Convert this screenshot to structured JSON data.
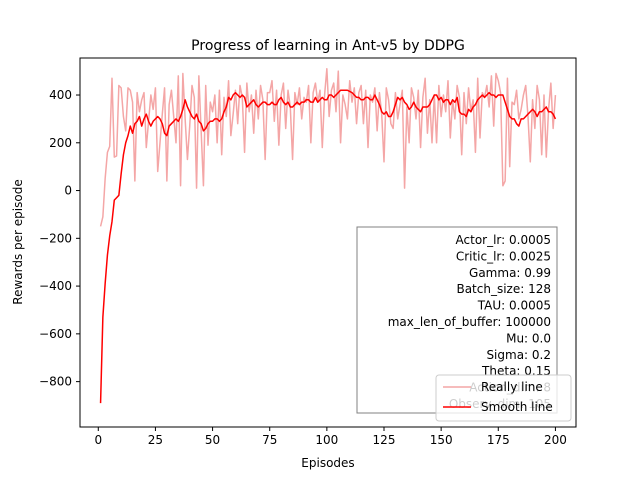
{
  "chart_data": {
    "type": "line",
    "title": "Progress of learning in Ant-v5 by DDPG",
    "xlabel": "Episodes",
    "ylabel": "Rewards per episode",
    "xlim": [
      -8,
      209
    ],
    "ylim": [
      -990,
      555
    ],
    "xticks": [
      0,
      25,
      50,
      75,
      100,
      125,
      150,
      175,
      200
    ],
    "yticks": [
      -800,
      -600,
      -400,
      -200,
      0,
      200,
      400
    ],
    "grid": false,
    "legend_position": "lower-right",
    "series": [
      {
        "name": "Really line",
        "color": "#f4a6a6",
        "x": [
          1,
          2,
          3,
          4,
          5,
          6,
          7,
          8,
          9,
          10,
          11,
          12,
          13,
          14,
          15,
          16,
          17,
          18,
          19,
          20,
          21,
          22,
          23,
          24,
          25,
          26,
          27,
          28,
          29,
          30,
          31,
          32,
          33,
          34,
          35,
          36,
          37,
          38,
          39,
          40,
          41,
          42,
          43,
          44,
          45,
          46,
          47,
          48,
          49,
          50,
          51,
          52,
          53,
          54,
          55,
          56,
          57,
          58,
          59,
          60,
          61,
          62,
          63,
          64,
          65,
          66,
          67,
          68,
          69,
          70,
          71,
          72,
          73,
          74,
          75,
          76,
          77,
          78,
          79,
          80,
          81,
          82,
          83,
          84,
          85,
          86,
          87,
          88,
          89,
          90,
          91,
          92,
          93,
          94,
          95,
          96,
          97,
          98,
          99,
          100,
          101,
          102,
          103,
          104,
          105,
          106,
          107,
          108,
          109,
          110,
          111,
          112,
          113,
          114,
          115,
          116,
          117,
          118,
          119,
          120,
          121,
          122,
          123,
          124,
          125,
          126,
          127,
          128,
          129,
          130,
          131,
          132,
          133,
          134,
          135,
          136,
          137,
          138,
          139,
          140,
          141,
          142,
          143,
          144,
          145,
          146,
          147,
          148,
          149,
          150,
          151,
          152,
          153,
          154,
          155,
          156,
          157,
          158,
          159,
          160,
          161,
          162,
          163,
          164,
          165,
          166,
          167,
          168,
          169,
          170,
          171,
          172,
          173,
          174,
          175,
          176,
          177,
          178,
          179,
          180,
          181,
          182,
          183,
          184,
          185,
          186,
          187,
          188,
          189,
          190,
          191,
          192,
          193,
          194,
          195,
          196,
          197,
          198,
          199,
          200
        ],
        "values": [
          -150,
          -110,
          50,
          160,
          185,
          470,
          140,
          145,
          440,
          430,
          310,
          250,
          430,
          420,
          370,
          40,
          410,
          330,
          380,
          410,
          180,
          290,
          400,
          340,
          430,
          80,
          200,
          320,
          430,
          40,
          360,
          420,
          310,
          200,
          480,
          20,
          490,
          300,
          130,
          270,
          440,
          390,
          10,
          480,
          250,
          20,
          440,
          190,
          370,
          330,
          400,
          200,
          420,
          150,
          390,
          310,
          460,
          230,
          320,
          420,
          280,
          440,
          390,
          160,
          450,
          330,
          400,
          240,
          420,
          300,
          440,
          380,
          130,
          410,
          410,
          460,
          290,
          420,
          190,
          400,
          450,
          260,
          420,
          350,
          130,
          410,
          360,
          430,
          300,
          390,
          370,
          440,
          200,
          410,
          450,
          370,
          420,
          180,
          400,
          510,
          310,
          420,
          450,
          330,
          500,
          200,
          400,
          360,
          300,
          460,
          370,
          430,
          280,
          410,
          440,
          280,
          420,
          180,
          400,
          370,
          430,
          250,
          410,
          320,
          120,
          430,
          380,
          280,
          260,
          410,
          300,
          360,
          420,
          10,
          350,
          200,
          430,
          390,
          300,
          420,
          180,
          390,
          470,
          240,
          380,
          200,
          400,
          200,
          440,
          310,
          400,
          330,
          460,
          220,
          380,
          300,
          440,
          390,
          150,
          410,
          280,
          430,
          330,
          380,
          160,
          470,
          220,
          410,
          390,
          440,
          350,
          480,
          270,
          490,
          460,
          410,
          20,
          40,
          470,
          100,
          370,
          360,
          420,
          300,
          340,
          400,
          440,
          310,
          120,
          380,
          260,
          440,
          380,
          150,
          400,
          140,
          340,
          450,
          260,
          400
        ]
      },
      {
        "name": "Smooth line",
        "color": "#ff0000",
        "x": [
          1,
          2,
          3,
          4,
          5,
          6,
          7,
          8,
          9,
          10,
          11,
          12,
          13,
          14,
          15,
          16,
          17,
          18,
          19,
          20,
          21,
          22,
          23,
          24,
          25,
          26,
          27,
          28,
          29,
          30,
          31,
          32,
          33,
          34,
          35,
          36,
          37,
          38,
          39,
          40,
          41,
          42,
          43,
          44,
          45,
          46,
          47,
          48,
          49,
          50,
          51,
          52,
          53,
          54,
          55,
          56,
          57,
          58,
          59,
          60,
          61,
          62,
          63,
          64,
          65,
          66,
          67,
          68,
          69,
          70,
          71,
          72,
          73,
          74,
          75,
          76,
          77,
          78,
          79,
          80,
          81,
          82,
          83,
          84,
          85,
          86,
          87,
          88,
          89,
          90,
          91,
          92,
          93,
          94,
          95,
          96,
          97,
          98,
          99,
          100,
          101,
          102,
          103,
          104,
          105,
          106,
          107,
          108,
          109,
          110,
          111,
          112,
          113,
          114,
          115,
          116,
          117,
          118,
          119,
          120,
          121,
          122,
          123,
          124,
          125,
          126,
          127,
          128,
          129,
          130,
          131,
          132,
          133,
          134,
          135,
          136,
          137,
          138,
          139,
          140,
          141,
          142,
          143,
          144,
          145,
          146,
          147,
          148,
          149,
          150,
          151,
          152,
          153,
          154,
          155,
          156,
          157,
          158,
          159,
          160,
          161,
          162,
          163,
          164,
          165,
          166,
          167,
          168,
          169,
          170,
          171,
          172,
          173,
          174,
          175,
          176,
          177,
          178,
          179,
          180,
          181,
          182,
          183,
          184,
          185,
          186,
          187,
          188,
          189,
          190,
          191,
          192,
          193,
          194,
          195,
          196,
          197,
          198,
          199,
          200
        ],
        "values": [
          -890,
          -530,
          -390,
          -270,
          -190,
          -130,
          -40,
          -30,
          -20,
          70,
          150,
          200,
          230,
          270,
          240,
          280,
          290,
          310,
          270,
          300,
          320,
          290,
          270,
          290,
          300,
          310,
          300,
          280,
          240,
          230,
          270,
          280,
          290,
          300,
          290,
          310,
          340,
          380,
          350,
          330,
          310,
          300,
          320,
          290,
          280,
          250,
          260,
          280,
          290,
          290,
          300,
          300,
          290,
          300,
          330,
          350,
          390,
          380,
          400,
          410,
          400,
          390,
          400,
          390,
          350,
          360,
          370,
          380,
          360,
          350,
          360,
          370,
          370,
          360,
          360,
          370,
          360,
          360,
          380,
          390,
          370,
          360,
          370,
          350,
          350,
          360,
          370,
          360,
          370,
          370,
          380,
          380,
          370,
          370,
          390,
          370,
          380,
          390,
          380,
          380,
          400,
          400,
          390,
          400,
          410,
          420,
          420,
          420,
          420,
          415,
          410,
          400,
          390,
          390,
          380,
          380,
          390,
          390,
          380,
          380,
          400,
          380,
          360,
          330,
          320,
          330,
          310,
          310,
          330,
          360,
          390,
          380,
          390,
          370,
          360,
          340,
          350,
          370,
          350,
          340,
          330,
          350,
          350,
          350,
          360,
          380,
          400,
          400,
          380,
          390,
          370,
          380,
          380,
          360,
          380,
          370,
          390,
          330,
          320,
          320,
          310,
          340,
          330,
          350,
          360,
          380,
          390,
          400,
          390,
          400,
          410,
          400,
          400,
          390,
          400,
          400,
          400,
          370,
          340,
          310,
          300,
          300,
          280,
          270,
          300,
          300,
          310,
          320,
          330,
          340,
          330,
          310,
          330,
          330,
          340,
          350,
          330,
          330,
          320,
          300
        ]
      }
    ],
    "annotation_lines": [
      "Actor_lr: 0.0005",
      "Critic_lr: 0.0025",
      "Gamma: 0.99",
      "Batch_size: 128",
      "TAU: 0.0005",
      "max_len_of_buffer: 100000",
      "Mu: 0.0",
      "Sigma: 0.2",
      "Theta: 0.15",
      "Action_dim: 8",
      "Observ_dim: 105"
    ]
  }
}
